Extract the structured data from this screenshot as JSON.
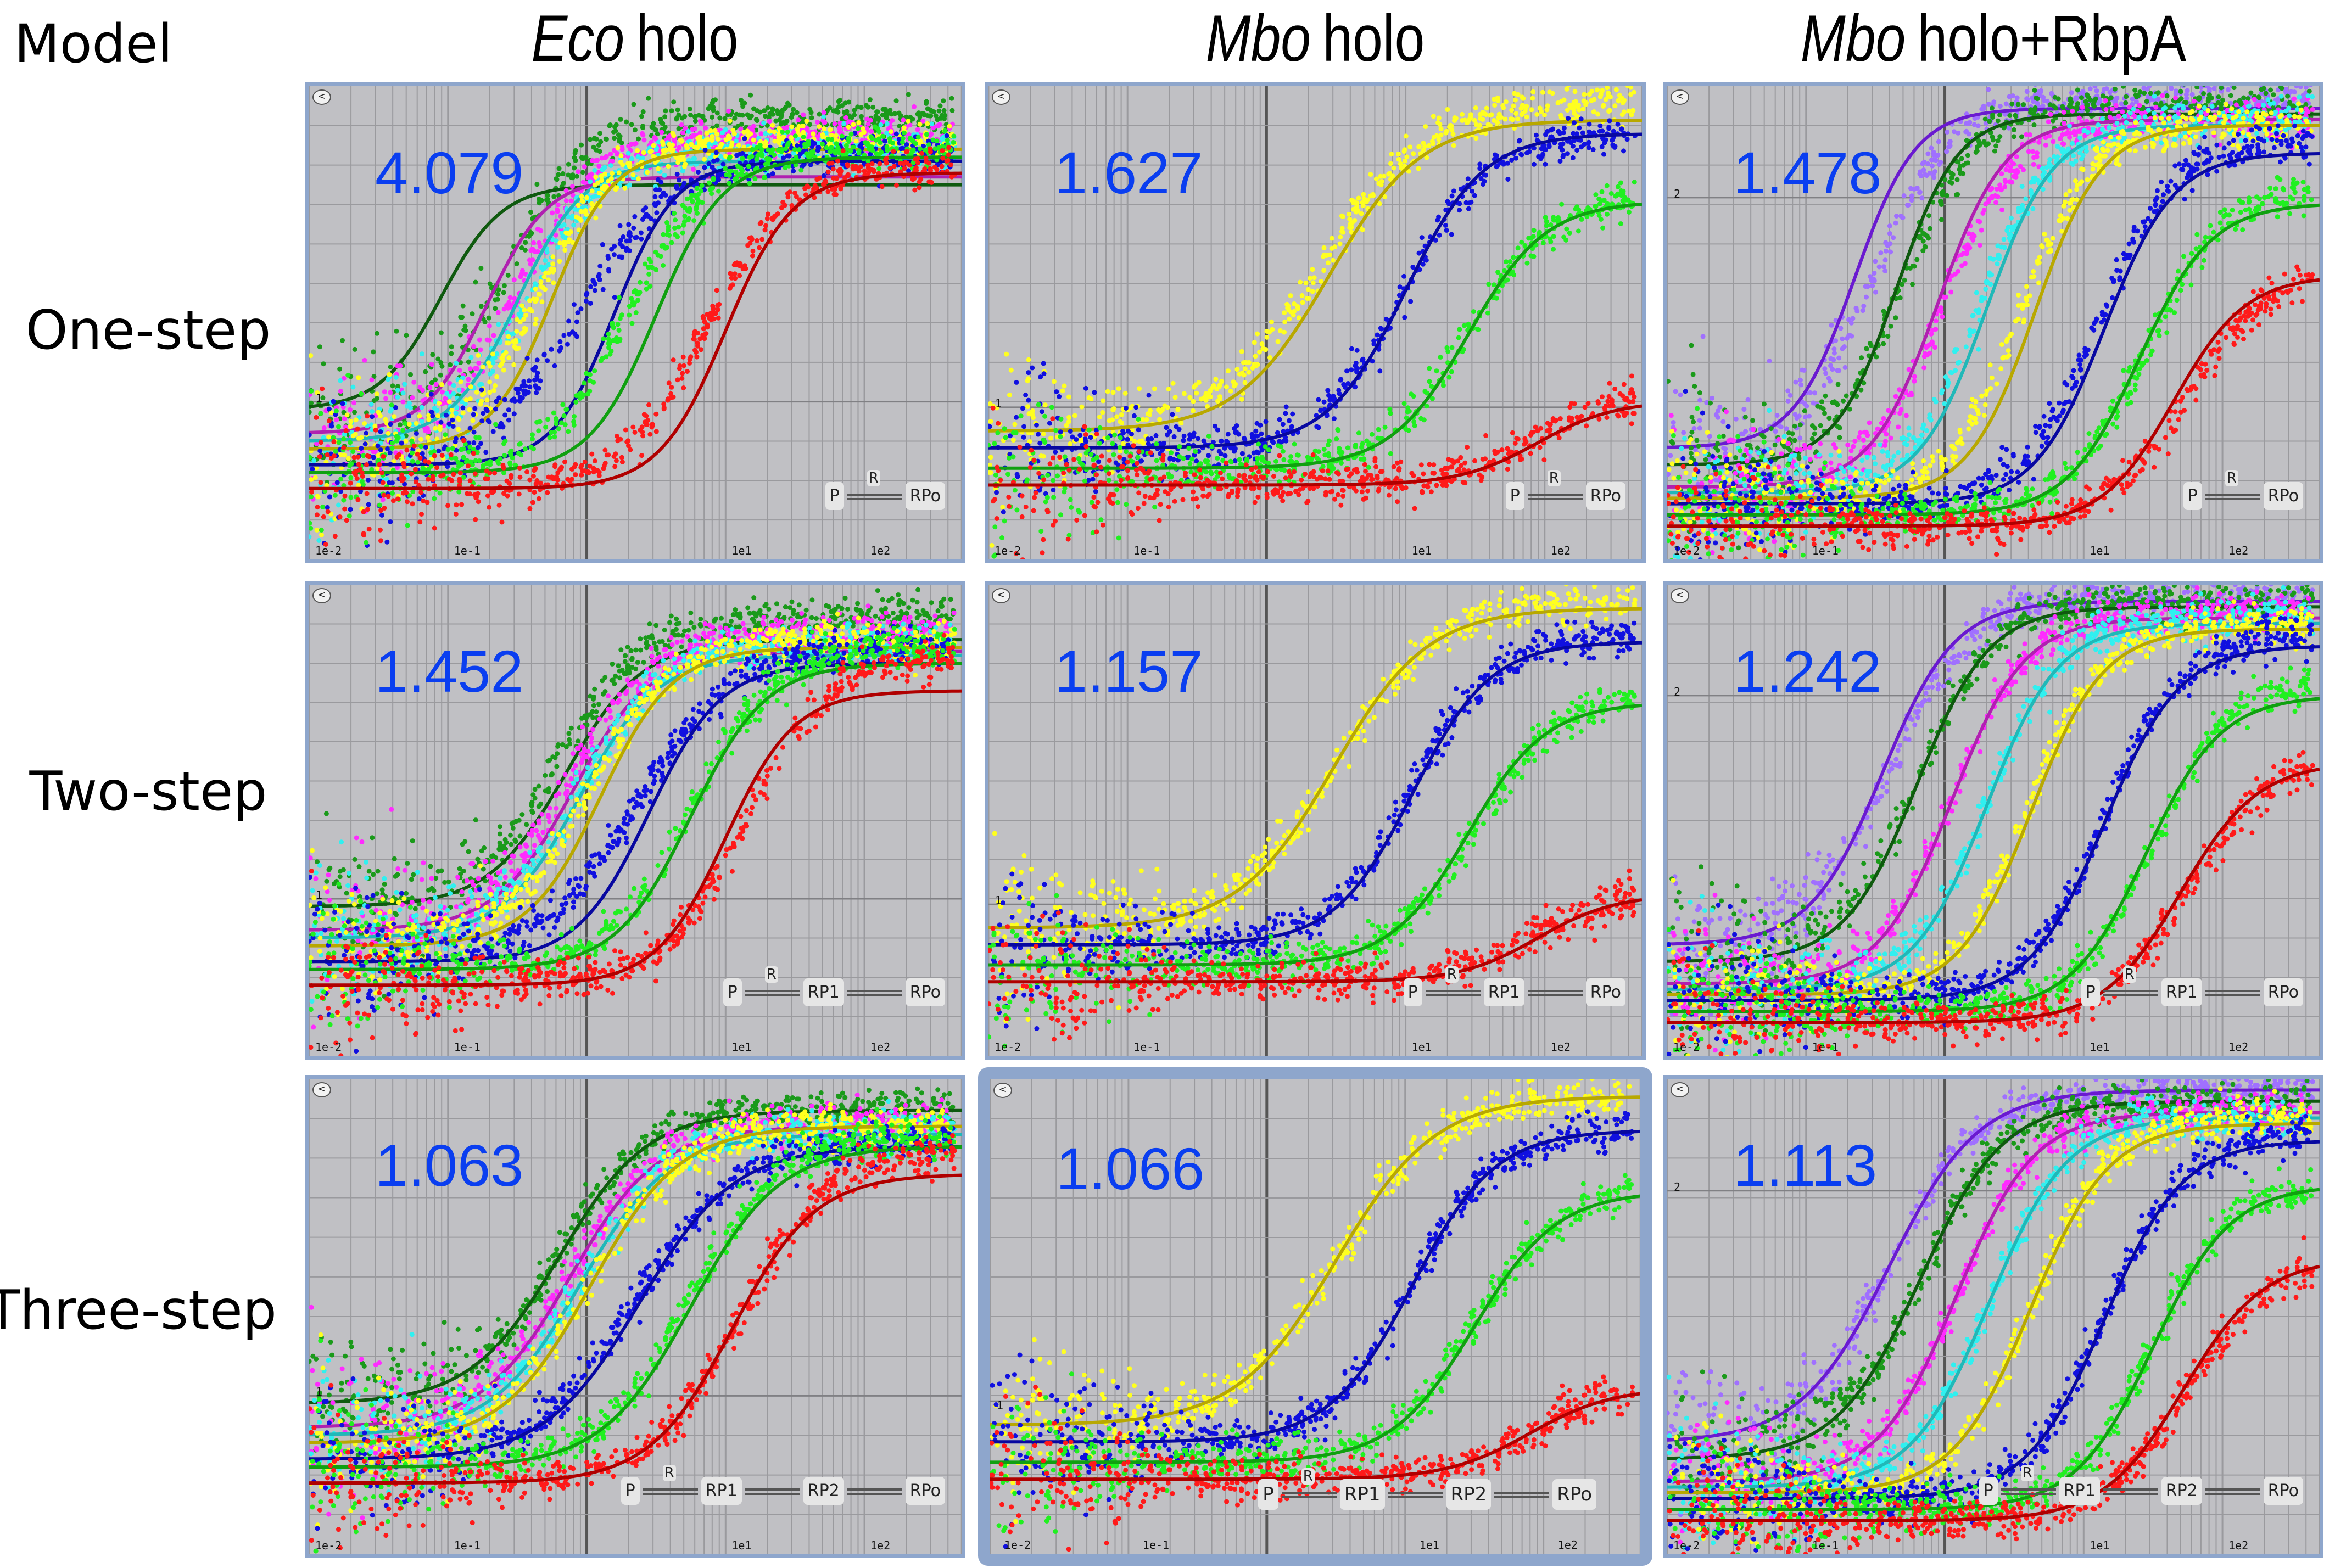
{
  "corner_label": "Model",
  "columns": [
    {
      "italic": "Eco",
      "rest": "holo"
    },
    {
      "italic": "Mbo",
      "rest": "holo"
    },
    {
      "italic": "Mbo",
      "rest": "holo+RbpA"
    }
  ],
  "rows": [
    "One-step",
    "Two-step",
    "Three-step"
  ],
  "back_label": "<",
  "x_tick_labels": [
    "1e-2",
    "1e-1",
    "1e1",
    "1e2"
  ],
  "schemes": {
    "one": {
      "species": [
        "P",
        "RPo"
      ],
      "reagent": "R"
    },
    "two": {
      "species": [
        "P",
        "RP1",
        "RPo"
      ],
      "reagent": "R"
    },
    "three": {
      "species": [
        "P",
        "RP1",
        "RP2",
        "RPo"
      ],
      "reagent": "R"
    }
  },
  "colors": {
    "score": "#0a3ef0",
    "panel_bg": "#c0c0c4",
    "frame": "#8ea6cc"
  },
  "chart_data": [
    {
      "type": "scatter",
      "row": "One-step",
      "column": "Eco holo",
      "score": "4.079",
      "scheme": "one",
      "xscale": "log",
      "xlim": [
        -2,
        2.7
      ],
      "ylim": [
        0.6,
        1.8
      ],
      "ytick_label": "1",
      "ytick_value": 1,
      "series": [
        {
          "name": "dark green",
          "dot": "#1a9a1a",
          "fit": "#0f5a0f",
          "base": 0.98,
          "top": 1.72,
          "mid": -0.55,
          "w": 0.28,
          "fitmid": -1.05,
          "fitw": 0.22,
          "fittop": 1.55
        },
        {
          "name": "magenta",
          "dot": "#ff2bff",
          "fit": "#b020b0",
          "base": 0.92,
          "top": 1.67,
          "mid": -0.48,
          "w": 0.27,
          "fitmid": -0.72,
          "fitw": 0.22,
          "fittop": 1.57
        },
        {
          "name": "cyan",
          "dot": "#30f0f0",
          "fit": "#20b8b8",
          "base": 0.9,
          "top": 1.64,
          "mid": -0.42,
          "w": 0.27,
          "fitmid": -0.5,
          "fitw": 0.24,
          "fittop": 1.61
        },
        {
          "name": "yellow",
          "dot": "#ffff20",
          "fit": "#b8a800",
          "base": 0.88,
          "top": 1.66,
          "mid": -0.35,
          "w": 0.27,
          "fitmid": -0.25,
          "fitw": 0.22,
          "fittop": 1.64
        },
        {
          "name": "blue",
          "dot": "#1010e0",
          "fit": "#0808a0",
          "base": 0.84,
          "top": 1.63,
          "mid": -0.05,
          "w": 0.35,
          "fitmid": 0.2,
          "fitw": 0.22,
          "fittop": 1.61
        },
        {
          "name": "green",
          "dot": "#20f020",
          "fit": "#10a010",
          "base": 0.82,
          "top": 1.64,
          "mid": 0.3,
          "w": 0.3,
          "fitmid": 0.5,
          "fitw": 0.24,
          "fittop": 1.62
        },
        {
          "name": "red",
          "dot": "#ff1a1a",
          "fit": "#b00000",
          "base": 0.78,
          "top": 1.6,
          "mid": 0.85,
          "w": 0.3,
          "fitmid": 1.0,
          "fitw": 0.24,
          "fittop": 1.58
        }
      ]
    },
    {
      "type": "scatter",
      "row": "One-step",
      "column": "Mbo holo",
      "score": "1.627",
      "scheme": "one",
      "xscale": "log",
      "xlim": [
        -2,
        2.7
      ],
      "ylim": [
        0.55,
        1.95
      ],
      "ytick_label": "1",
      "ytick_value": 1,
      "series": [
        {
          "name": "yellow",
          "dot": "#ffff20",
          "fit": "#b8a800",
          "base": 0.93,
          "top": 1.9,
          "mid": 0.4,
          "w": 0.38,
          "fitmid": 0.45,
          "fitw": 0.33,
          "fittop": 1.85
        },
        {
          "name": "blue",
          "dot": "#1010e0",
          "fit": "#0808a0",
          "base": 0.88,
          "top": 1.81,
          "mid": 1.0,
          "w": 0.3,
          "fitmid": 1.0,
          "fitw": 0.28,
          "fittop": 1.81
        },
        {
          "name": "green",
          "dot": "#20f020",
          "fit": "#10a010",
          "base": 0.82,
          "top": 1.63,
          "mid": 1.45,
          "w": 0.3,
          "fitmid": 1.45,
          "fitw": 0.28,
          "fittop": 1.61
        },
        {
          "name": "red",
          "dot": "#ff1a1a",
          "fit": "#b00000",
          "base": 0.77,
          "top": 1.04,
          "mid": 1.9,
          "w": 0.3,
          "fitmid": 1.95,
          "fitw": 0.28,
          "fittop": 1.02
        }
      ]
    },
    {
      "type": "scatter",
      "row": "One-step",
      "column": "Mbo holo+RbpA",
      "score": "1.478",
      "scheme": "one",
      "xscale": "log",
      "xlim": [
        -2,
        2.7
      ],
      "ylim": [
        1.35,
        2.2
      ],
      "ytick_label": "2",
      "ytick_value": 2,
      "series": [
        {
          "name": "purple",
          "dot": "#a070ff",
          "fit": "#6a1ad0",
          "base": 1.55,
          "top": 2.18,
          "mid": -0.5,
          "w": 0.28,
          "fitmid": -0.65,
          "fitw": 0.22,
          "fittop": 2.16
        },
        {
          "name": "dark green",
          "dot": "#1a9a1a",
          "fit": "#0f5a0f",
          "base": 1.52,
          "top": 2.17,
          "mid": -0.3,
          "w": 0.27,
          "fitmid": -0.35,
          "fitw": 0.22,
          "fittop": 2.15
        },
        {
          "name": "magenta",
          "dot": "#ff2bff",
          "fit": "#b020b0",
          "base": 1.48,
          "top": 2.14,
          "mid": 0.0,
          "w": 0.26,
          "fitmid": -0.05,
          "fitw": 0.24,
          "fittop": 2.14
        },
        {
          "name": "cyan",
          "dot": "#30f0f0",
          "fit": "#20b8b8",
          "base": 1.47,
          "top": 2.14,
          "mid": 0.25,
          "w": 0.26,
          "fitmid": 0.3,
          "fitw": 0.24,
          "fittop": 2.13
        },
        {
          "name": "yellow",
          "dot": "#ffff20",
          "fit": "#b8a800",
          "base": 1.46,
          "top": 2.13,
          "mid": 0.55,
          "w": 0.26,
          "fitmid": 0.65,
          "fitw": 0.24,
          "fittop": 2.13
        },
        {
          "name": "blue",
          "dot": "#1010e0",
          "fit": "#0808a0",
          "base": 1.45,
          "top": 2.1,
          "mid": 1.1,
          "w": 0.27,
          "fitmid": 1.15,
          "fitw": 0.25,
          "fittop": 2.08
        },
        {
          "name": "green",
          "dot": "#20f020",
          "fit": "#10a010",
          "base": 1.43,
          "top": 2.02,
          "mid": 1.45,
          "w": 0.28,
          "fitmid": 1.4,
          "fitw": 0.26,
          "fittop": 1.99
        },
        {
          "name": "red",
          "dot": "#ff1a1a",
          "fit": "#b00000",
          "base": 1.41,
          "top": 1.88,
          "mid": 1.75,
          "w": 0.3,
          "fitmid": 1.65,
          "fitw": 0.26,
          "fittop": 1.86
        }
      ]
    },
    {
      "type": "scatter",
      "row": "Two-step",
      "column": "Eco holo",
      "score": "1.452",
      "scheme": "two",
      "xscale": "log",
      "xlim": [
        -2,
        2.7
      ],
      "ylim": [
        0.6,
        1.8
      ],
      "ytick_label": "1",
      "ytick_value": 1,
      "series": [
        {
          "name": "dark green",
          "dot": "#1a9a1a",
          "fit": "#0f5a0f",
          "base": 0.98,
          "top": 1.72,
          "mid": -0.2,
          "w": 0.3,
          "fitmid": -0.15,
          "fitw": 0.28,
          "fittop": 1.66
        },
        {
          "name": "magenta",
          "dot": "#ff2bff",
          "fit": "#b020b0",
          "base": 0.92,
          "top": 1.68,
          "mid": -0.12,
          "w": 0.3,
          "fitmid": -0.1,
          "fitw": 0.28,
          "fittop": 1.63
        },
        {
          "name": "cyan",
          "dot": "#30f0f0",
          "fit": "#20b8b8",
          "base": 0.9,
          "top": 1.65,
          "mid": -0.05,
          "w": 0.3,
          "fitmid": -0.05,
          "fitw": 0.28,
          "fittop": 1.62
        },
        {
          "name": "yellow",
          "dot": "#ffff20",
          "fit": "#b8a800",
          "base": 0.88,
          "top": 1.66,
          "mid": 0.0,
          "w": 0.3,
          "fitmid": 0.1,
          "fitw": 0.26,
          "fittop": 1.64
        },
        {
          "name": "blue",
          "dot": "#1010e0",
          "fit": "#0808a0",
          "base": 0.84,
          "top": 1.64,
          "mid": 0.35,
          "w": 0.35,
          "fitmid": 0.45,
          "fitw": 0.26,
          "fittop": 1.6
        },
        {
          "name": "green",
          "dot": "#20f020",
          "fit": "#10a010",
          "base": 0.82,
          "top": 1.64,
          "mid": 0.75,
          "w": 0.3,
          "fitmid": 0.75,
          "fitw": 0.27,
          "fittop": 1.6
        },
        {
          "name": "red",
          "dot": "#ff1a1a",
          "fit": "#b00000",
          "base": 0.78,
          "top": 1.62,
          "mid": 1.15,
          "w": 0.3,
          "fitmid": 1.0,
          "fitw": 0.25,
          "fittop": 1.53
        }
      ]
    },
    {
      "type": "scatter",
      "row": "Two-step",
      "column": "Mbo holo",
      "score": "1.157",
      "scheme": "two",
      "xscale": "log",
      "xlim": [
        -2,
        2.7
      ],
      "ylim": [
        0.55,
        1.95
      ],
      "ytick_label": "1",
      "ytick_value": 1,
      "series": [
        {
          "name": "yellow",
          "dot": "#ffff20",
          "fit": "#b8a800",
          "base": 0.93,
          "top": 1.9,
          "mid": 0.5,
          "w": 0.36,
          "fitmid": 0.48,
          "fitw": 0.34,
          "fittop": 1.88
        },
        {
          "name": "blue",
          "dot": "#1010e0",
          "fit": "#0808a0",
          "base": 0.88,
          "top": 1.8,
          "mid": 1.05,
          "w": 0.3,
          "fitmid": 1.05,
          "fitw": 0.28,
          "fittop": 1.78
        },
        {
          "name": "green",
          "dot": "#20f020",
          "fit": "#10a010",
          "base": 0.82,
          "top": 1.63,
          "mid": 1.5,
          "w": 0.3,
          "fitmid": 1.45,
          "fitw": 0.28,
          "fittop": 1.6
        },
        {
          "name": "red",
          "dot": "#ff1a1a",
          "fit": "#b00000",
          "base": 0.77,
          "top": 1.04,
          "mid": 1.9,
          "w": 0.3,
          "fitmid": 1.95,
          "fitw": 0.28,
          "fittop": 1.03
        }
      ]
    },
    {
      "type": "scatter",
      "row": "Two-step",
      "column": "Mbo holo+RbpA",
      "score": "1.242",
      "scheme": "two",
      "xscale": "log",
      "xlim": [
        -2,
        2.7
      ],
      "ylim": [
        1.35,
        2.2
      ],
      "ytick_label": "2",
      "ytick_value": 2,
      "series": [
        {
          "name": "purple",
          "dot": "#a070ff",
          "fit": "#6a1ad0",
          "base": 1.55,
          "top": 2.18,
          "mid": -0.4,
          "w": 0.3,
          "fitmid": -0.45,
          "fitw": 0.26,
          "fittop": 2.17
        },
        {
          "name": "dark green",
          "dot": "#1a9a1a",
          "fit": "#0f5a0f",
          "base": 1.52,
          "top": 2.17,
          "mid": -0.2,
          "w": 0.28,
          "fitmid": -0.2,
          "fitw": 0.26,
          "fittop": 2.16
        },
        {
          "name": "magenta",
          "dot": "#ff2bff",
          "fit": "#b020b0",
          "base": 1.48,
          "top": 2.15,
          "mid": 0.05,
          "w": 0.27,
          "fitmid": 0.05,
          "fitw": 0.26,
          "fittop": 2.14
        },
        {
          "name": "cyan",
          "dot": "#30f0f0",
          "fit": "#20b8b8",
          "base": 1.47,
          "top": 2.14,
          "mid": 0.3,
          "w": 0.27,
          "fitmid": 0.3,
          "fitw": 0.26,
          "fittop": 2.13
        },
        {
          "name": "yellow",
          "dot": "#ffff20",
          "fit": "#b8a800",
          "base": 1.46,
          "top": 2.13,
          "mid": 0.6,
          "w": 0.27,
          "fitmid": 0.62,
          "fitw": 0.26,
          "fittop": 2.12
        },
        {
          "name": "blue",
          "dot": "#1010e0",
          "fit": "#0808a0",
          "base": 1.45,
          "top": 2.11,
          "mid": 1.15,
          "w": 0.28,
          "fitmid": 1.15,
          "fitw": 0.27,
          "fittop": 2.09
        },
        {
          "name": "green",
          "dot": "#20f020",
          "fit": "#10a010",
          "base": 1.43,
          "top": 2.03,
          "mid": 1.5,
          "w": 0.28,
          "fitmid": 1.45,
          "fitw": 0.27,
          "fittop": 2.0
        },
        {
          "name": "red",
          "dot": "#ff1a1a",
          "fit": "#b00000",
          "base": 1.41,
          "top": 1.89,
          "mid": 1.75,
          "w": 0.3,
          "fitmid": 1.7,
          "fitw": 0.28,
          "fittop": 1.88
        }
      ]
    },
    {
      "type": "scatter",
      "row": "Three-step",
      "column": "Eco holo",
      "score": "1.063",
      "scheme": "three",
      "xscale": "log",
      "xlim": [
        -2,
        2.7
      ],
      "ylim": [
        0.6,
        1.8
      ],
      "ytick_label": "1",
      "ytick_value": 1,
      "series": [
        {
          "name": "dark green",
          "dot": "#1a9a1a",
          "fit": "#0f5a0f",
          "base": 0.98,
          "top": 1.73,
          "mid": -0.2,
          "w": 0.32,
          "fitmid": -0.2,
          "fitw": 0.32,
          "fittop": 1.72
        },
        {
          "name": "magenta",
          "dot": "#ff2bff",
          "fit": "#b020b0",
          "base": 0.92,
          "top": 1.69,
          "mid": -0.12,
          "w": 0.32,
          "fitmid": -0.12,
          "fitw": 0.32,
          "fittop": 1.68
        },
        {
          "name": "cyan",
          "dot": "#30f0f0",
          "fit": "#20b8b8",
          "base": 0.9,
          "top": 1.67,
          "mid": -0.05,
          "w": 0.32,
          "fitmid": -0.05,
          "fitw": 0.32,
          "fittop": 1.66
        },
        {
          "name": "yellow",
          "dot": "#ffff20",
          "fit": "#b8a800",
          "base": 0.88,
          "top": 1.68,
          "mid": 0.02,
          "w": 0.32,
          "fitmid": 0.03,
          "fitw": 0.32,
          "fittop": 1.68
        },
        {
          "name": "blue",
          "dot": "#1010e0",
          "fit": "#0808a0",
          "base": 0.84,
          "top": 1.64,
          "mid": 0.35,
          "w": 0.36,
          "fitmid": 0.38,
          "fitw": 0.34,
          "fittop": 1.63
        },
        {
          "name": "green",
          "dot": "#20f020",
          "fit": "#10a010",
          "base": 0.82,
          "top": 1.65,
          "mid": 0.72,
          "w": 0.32,
          "fitmid": 0.75,
          "fitw": 0.32,
          "fittop": 1.63
        },
        {
          "name": "red",
          "dot": "#ff1a1a",
          "fit": "#b00000",
          "base": 0.78,
          "top": 1.62,
          "mid": 1.1,
          "w": 0.32,
          "fitmid": 1.05,
          "fitw": 0.3,
          "fittop": 1.56
        }
      ]
    },
    {
      "type": "scatter",
      "row": "Three-step",
      "column": "Mbo holo",
      "score": "1.066",
      "scheme": "three",
      "xscale": "log",
      "xlim": [
        -2,
        2.7
      ],
      "ylim": [
        0.55,
        1.95
      ],
      "ytick_label": "1",
      "ytick_value": 1,
      "series": [
        {
          "name": "yellow",
          "dot": "#ffff20",
          "fit": "#b8a800",
          "base": 0.93,
          "top": 1.9,
          "mid": 0.5,
          "w": 0.36,
          "fitmid": 0.5,
          "fitw": 0.36,
          "fittop": 1.9
        },
        {
          "name": "blue",
          "dot": "#1010e0",
          "fit": "#0808a0",
          "base": 0.88,
          "top": 1.8,
          "mid": 1.05,
          "w": 0.3,
          "fitmid": 1.05,
          "fitw": 0.3,
          "fittop": 1.8
        },
        {
          "name": "green",
          "dot": "#20f020",
          "fit": "#10a010",
          "base": 0.82,
          "top": 1.63,
          "mid": 1.5,
          "w": 0.3,
          "fitmid": 1.5,
          "fitw": 0.3,
          "fittop": 1.62
        },
        {
          "name": "red",
          "dot": "#ff1a1a",
          "fit": "#b00000",
          "base": 0.77,
          "top": 1.04,
          "mid": 1.9,
          "w": 0.3,
          "fitmid": 1.9,
          "fitw": 0.3,
          "fittop": 1.04
        }
      ]
    },
    {
      "type": "scatter",
      "row": "Three-step",
      "column": "Mbo holo+RbpA",
      "score": "1.113",
      "scheme": "three",
      "xscale": "log",
      "xlim": [
        -2,
        2.7
      ],
      "ylim": [
        1.35,
        2.2
      ],
      "ytick_label": "2",
      "ytick_value": 2,
      "series": [
        {
          "name": "purple",
          "dot": "#a070ff",
          "fit": "#6a1ad0",
          "base": 1.55,
          "top": 2.18,
          "mid": -0.4,
          "w": 0.32,
          "fitmid": -0.4,
          "fitw": 0.32,
          "fittop": 2.18
        },
        {
          "name": "dark green",
          "dot": "#1a9a1a",
          "fit": "#0f5a0f",
          "base": 1.52,
          "top": 2.16,
          "mid": -0.18,
          "w": 0.3,
          "fitmid": -0.18,
          "fitw": 0.3,
          "fittop": 2.16
        },
        {
          "name": "magenta",
          "dot": "#ff2bff",
          "fit": "#b020b0",
          "base": 1.48,
          "top": 2.14,
          "mid": 0.08,
          "w": 0.28,
          "fitmid": 0.08,
          "fitw": 0.28,
          "fittop": 2.14
        },
        {
          "name": "cyan",
          "dot": "#30f0f0",
          "fit": "#20b8b8",
          "base": 1.47,
          "top": 2.13,
          "mid": 0.32,
          "w": 0.28,
          "fitmid": 0.32,
          "fitw": 0.28,
          "fittop": 2.13
        },
        {
          "name": "yellow",
          "dot": "#ffff20",
          "fit": "#b8a800",
          "base": 1.46,
          "top": 2.13,
          "mid": 0.62,
          "w": 0.28,
          "fitmid": 0.62,
          "fitw": 0.28,
          "fittop": 2.12
        },
        {
          "name": "blue",
          "dot": "#1010e0",
          "fit": "#0808a0",
          "base": 1.45,
          "top": 2.1,
          "mid": 1.15,
          "w": 0.28,
          "fitmid": 1.15,
          "fitw": 0.28,
          "fittop": 2.09
        },
        {
          "name": "green",
          "dot": "#20f020",
          "fit": "#10a010",
          "base": 1.43,
          "top": 2.02,
          "mid": 1.5,
          "w": 0.28,
          "fitmid": 1.5,
          "fitw": 0.28,
          "fittop": 2.01
        },
        {
          "name": "red",
          "dot": "#ff1a1a",
          "fit": "#b00000",
          "base": 1.41,
          "top": 1.88,
          "mid": 1.75,
          "w": 0.3,
          "fitmid": 1.72,
          "fitw": 0.29,
          "fittop": 1.88
        }
      ]
    }
  ]
}
